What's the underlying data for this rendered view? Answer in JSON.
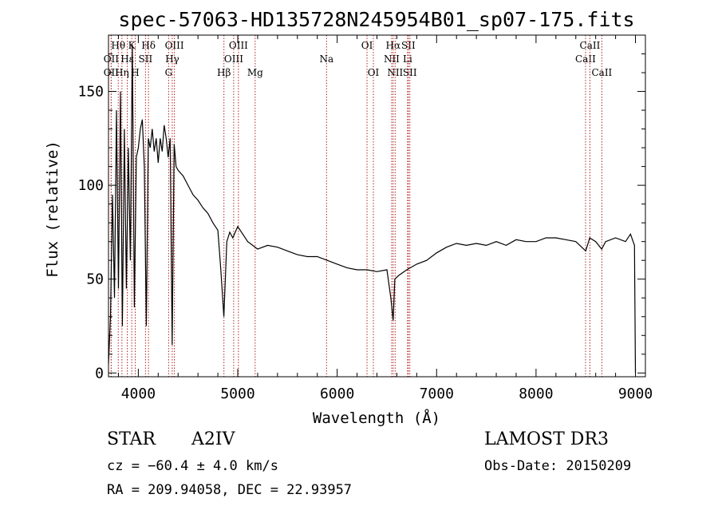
{
  "chart_data": {
    "type": "line",
    "title": "spec-57063-HD135728N245954B01_sp07-175.fits",
    "xlabel": "Wavelength (Å)",
    "ylabel": "Flux (relative)",
    "xlim": [
      3700,
      9100
    ],
    "ylim": [
      -2,
      180
    ],
    "x_ticks": [
      4000,
      5000,
      6000,
      7000,
      8000,
      9000
    ],
    "y_ticks": [
      0,
      50,
      100,
      150
    ],
    "grid": false,
    "line_color": "#000000",
    "marker_color": "#b22222",
    "series": [
      {
        "x": [
          3700,
          3720,
          3740,
          3760,
          3780,
          3800,
          3820,
          3840,
          3860,
          3880,
          3900,
          3920,
          3940,
          3960,
          3980,
          4000,
          4020,
          4040,
          4060,
          4080,
          4100,
          4120,
          4140,
          4160,
          4180,
          4200,
          4220,
          4240,
          4260,
          4280,
          4300,
          4320,
          4340,
          4360,
          4380,
          4400,
          4450,
          4500,
          4550,
          4600,
          4650,
          4700,
          4750,
          4800,
          4830,
          4860,
          4890,
          4920,
          4950,
          5000,
          5050,
          5100,
          5150,
          5200,
          5300,
          5400,
          5500,
          5600,
          5700,
          5800,
          5900,
          6000,
          6100,
          6200,
          6300,
          6400,
          6500,
          6540,
          6563,
          6580,
          6620,
          6700,
          6800,
          6900,
          7000,
          7100,
          7200,
          7300,
          7400,
          7500,
          7600,
          7700,
          7800,
          7900,
          8000,
          8100,
          8200,
          8300,
          8400,
          8500,
          8540,
          8600,
          8660,
          8700,
          8800,
          8900,
          8950,
          8990,
          9000
        ],
        "y": [
          5,
          30,
          95,
          40,
          140,
          45,
          150,
          25,
          130,
          45,
          120,
          60,
          175,
          35,
          115,
          120,
          130,
          135,
          110,
          25,
          125,
          120,
          130,
          118,
          125,
          112,
          125,
          118,
          132,
          125,
          115,
          125,
          15,
          122,
          110,
          108,
          105,
          100,
          95,
          92,
          88,
          85,
          80,
          76,
          55,
          30,
          70,
          75,
          72,
          78,
          74,
          70,
          68,
          66,
          68,
          67,
          65,
          63,
          62,
          62,
          60,
          58,
          56,
          55,
          55,
          54,
          55,
          40,
          28,
          50,
          52,
          55,
          58,
          60,
          64,
          67,
          69,
          68,
          69,
          68,
          70,
          68,
          71,
          70,
          70,
          72,
          72,
          71,
          70,
          65,
          72,
          70,
          66,
          70,
          72,
          70,
          74,
          68,
          0
        ]
      }
    ],
    "line_marks": [
      {
        "label": "Hθ",
        "x": 3798,
        "row": 1
      },
      {
        "label": "OII",
        "x": 3727,
        "row": 2
      },
      {
        "label": "OII",
        "x": 3727,
        "row": 3
      },
      {
        "label": "Hη",
        "x": 3835,
        "row": 3
      },
      {
        "label": "Hε",
        "x": 3889,
        "row": 2
      },
      {
        "label": "K",
        "x": 3934,
        "row": 1
      },
      {
        "label": "H",
        "x": 3969,
        "row": 3
      },
      {
        "label": "SII",
        "x": 4072,
        "row": 2
      },
      {
        "label": "Hδ",
        "x": 4102,
        "row": 1
      },
      {
        "label": "OIII",
        "x": 4363,
        "row": 1
      },
      {
        "label": "Hγ",
        "x": 4341,
        "row": 2
      },
      {
        "label": "G",
        "x": 4305,
        "row": 3
      },
      {
        "label": "Hβ",
        "x": 4861,
        "row": 3
      },
      {
        "label": "OIII",
        "x": 4959,
        "row": 2
      },
      {
        "label": "OIII",
        "x": 5007,
        "row": 1
      },
      {
        "label": "Mg",
        "x": 5175,
        "row": 3
      },
      {
        "label": "Na",
        "x": 5893,
        "row": 2
      },
      {
        "label": "OI",
        "x": 6300,
        "row": 1
      },
      {
        "label": "OI",
        "x": 6364,
        "row": 3
      },
      {
        "label": "NII",
        "x": 6548,
        "row": 2
      },
      {
        "label": "Hα",
        "x": 6563,
        "row": 1
      },
      {
        "label": "NII",
        "x": 6583,
        "row": 3
      },
      {
        "label": "Li",
        "x": 6708,
        "row": 2
      },
      {
        "label": "SII",
        "x": 6716,
        "row": 1
      },
      {
        "label": "SII",
        "x": 6731,
        "row": 3
      },
      {
        "label": "CaII",
        "x": 8498,
        "row": 2
      },
      {
        "label": "CaII",
        "x": 8542,
        "row": 1
      },
      {
        "label": "CaII",
        "x": 8662,
        "row": 3
      }
    ]
  },
  "info": {
    "class": "STAR",
    "subclass": "A2IV",
    "survey": "LAMOST DR3",
    "cz": "cz = −60.4 ± 4.0 km/s",
    "obs_date": "Obs-Date: 20150209",
    "radec": "RA = 209.94058, DEC =  22.93957"
  }
}
